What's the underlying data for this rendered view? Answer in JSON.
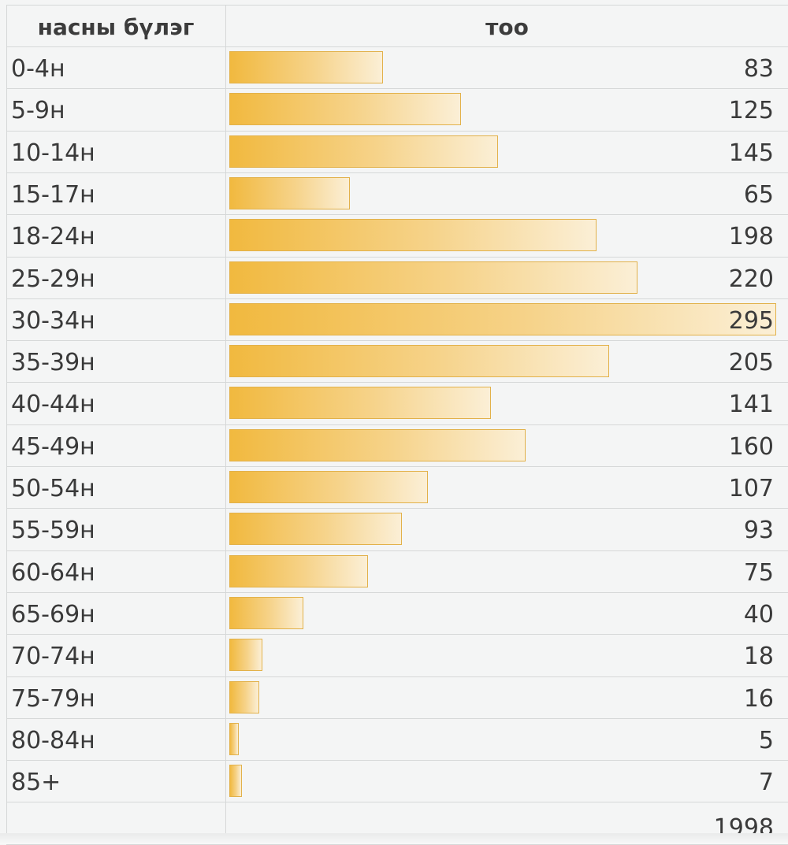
{
  "chart_data": {
    "type": "bar",
    "orientation": "horizontal",
    "column_headers": [
      "насны бүлэг",
      "тоо"
    ],
    "categories": [
      "0-4н",
      "5-9н",
      "10-14н",
      "15-17н",
      "18-24н",
      "25-29н",
      "30-34н",
      "35-39н",
      "40-44н",
      "45-49н",
      "50-54н",
      "55-59н",
      "60-64н",
      "65-69н",
      "70-74н",
      "75-79н",
      "80-84н",
      "85+"
    ],
    "values": [
      83,
      125,
      145,
      65,
      198,
      220,
      295,
      205,
      141,
      160,
      107,
      93,
      75,
      40,
      18,
      16,
      5,
      7
    ],
    "total": "1998",
    "xlim": [
      0,
      295
    ],
    "bar_color": "#f1b93f"
  }
}
